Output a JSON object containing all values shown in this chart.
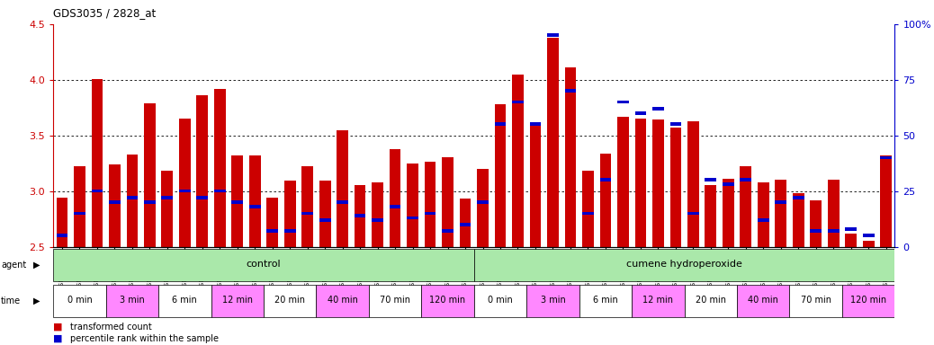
{
  "title": "GDS3035 / 2828_at",
  "samples": [
    "GSM184944",
    "GSM184952",
    "GSM184960",
    "GSM184945",
    "GSM184953",
    "GSM184961",
    "GSM184946",
    "GSM184954",
    "GSM184962",
    "GSM184947",
    "GSM184955",
    "GSM184963",
    "GSM184948",
    "GSM184956",
    "GSM184964",
    "GSM184949",
    "GSM184957",
    "GSM184965",
    "GSM184950",
    "GSM184958",
    "GSM184966",
    "GSM184951",
    "GSM184959",
    "GSM184967",
    "GSM184968",
    "GSM184976",
    "GSM184984",
    "GSM184969",
    "GSM184977",
    "GSM184985",
    "GSM184970",
    "GSM184978",
    "GSM184986",
    "GSM184971",
    "GSM184979",
    "GSM184987",
    "GSM184972",
    "GSM184980",
    "GSM184988",
    "GSM184973",
    "GSM184981",
    "GSM184989",
    "GSM184974",
    "GSM184982",
    "GSM184990",
    "GSM184975",
    "GSM184983",
    "GSM184991"
  ],
  "transformed_count": [
    2.94,
    3.22,
    4.01,
    3.24,
    3.33,
    3.79,
    3.18,
    3.65,
    3.86,
    3.92,
    3.32,
    3.32,
    2.94,
    3.09,
    3.22,
    3.09,
    3.55,
    3.05,
    3.08,
    3.38,
    3.25,
    3.26,
    3.3,
    2.93,
    3.2,
    3.78,
    4.05,
    3.6,
    4.38,
    4.11,
    3.18,
    3.34,
    3.67,
    3.65,
    3.64,
    3.57,
    3.63,
    3.05,
    3.11,
    3.22,
    3.08,
    3.1,
    2.98,
    2.92,
    3.1,
    2.62,
    2.55,
    3.32
  ],
  "percentile_rank": [
    5,
    15,
    25,
    20,
    22,
    20,
    22,
    25,
    22,
    25,
    20,
    18,
    7,
    7,
    15,
    12,
    20,
    14,
    12,
    18,
    13,
    15,
    7,
    10,
    20,
    55,
    65,
    55,
    95,
    70,
    15,
    30,
    65,
    60,
    62,
    55,
    15,
    30,
    28,
    30,
    12,
    20,
    22,
    7,
    7,
    8,
    5,
    40
  ],
  "y_min": 2.5,
  "y_max": 4.5,
  "yticks_left": [
    2.5,
    3.0,
    3.5,
    4.0,
    4.5
  ],
  "yticks_right": [
    0,
    25,
    50,
    75,
    100
  ],
  "bar_color": "#cc0000",
  "percentile_color": "#0000cc",
  "left_axis_color": "#cc0000",
  "right_axis_color": "#0000cc",
  "time_groups": [
    {
      "label": "0 min",
      "start": 0,
      "end": 2,
      "color": "#ffffff"
    },
    {
      "label": "3 min",
      "start": 3,
      "end": 5,
      "color": "#ff88ff"
    },
    {
      "label": "6 min",
      "start": 6,
      "end": 8,
      "color": "#ffffff"
    },
    {
      "label": "12 min",
      "start": 9,
      "end": 11,
      "color": "#ff88ff"
    },
    {
      "label": "20 min",
      "start": 12,
      "end": 14,
      "color": "#ffffff"
    },
    {
      "label": "40 min",
      "start": 15,
      "end": 17,
      "color": "#ff88ff"
    },
    {
      "label": "70 min",
      "start": 18,
      "end": 20,
      "color": "#ffffff"
    },
    {
      "label": "120 min",
      "start": 21,
      "end": 23,
      "color": "#ff88ff"
    },
    {
      "label": "0 min",
      "start": 24,
      "end": 26,
      "color": "#ffffff"
    },
    {
      "label": "3 min",
      "start": 27,
      "end": 29,
      "color": "#ff88ff"
    },
    {
      "label": "6 min",
      "start": 30,
      "end": 32,
      "color": "#ffffff"
    },
    {
      "label": "12 min",
      "start": 33,
      "end": 35,
      "color": "#ff88ff"
    },
    {
      "label": "20 min",
      "start": 36,
      "end": 38,
      "color": "#ffffff"
    },
    {
      "label": "40 min",
      "start": 39,
      "end": 41,
      "color": "#ff88ff"
    },
    {
      "label": "70 min",
      "start": 42,
      "end": 44,
      "color": "#ffffff"
    },
    {
      "label": "120 min",
      "start": 45,
      "end": 47,
      "color": "#ff88ff"
    }
  ]
}
